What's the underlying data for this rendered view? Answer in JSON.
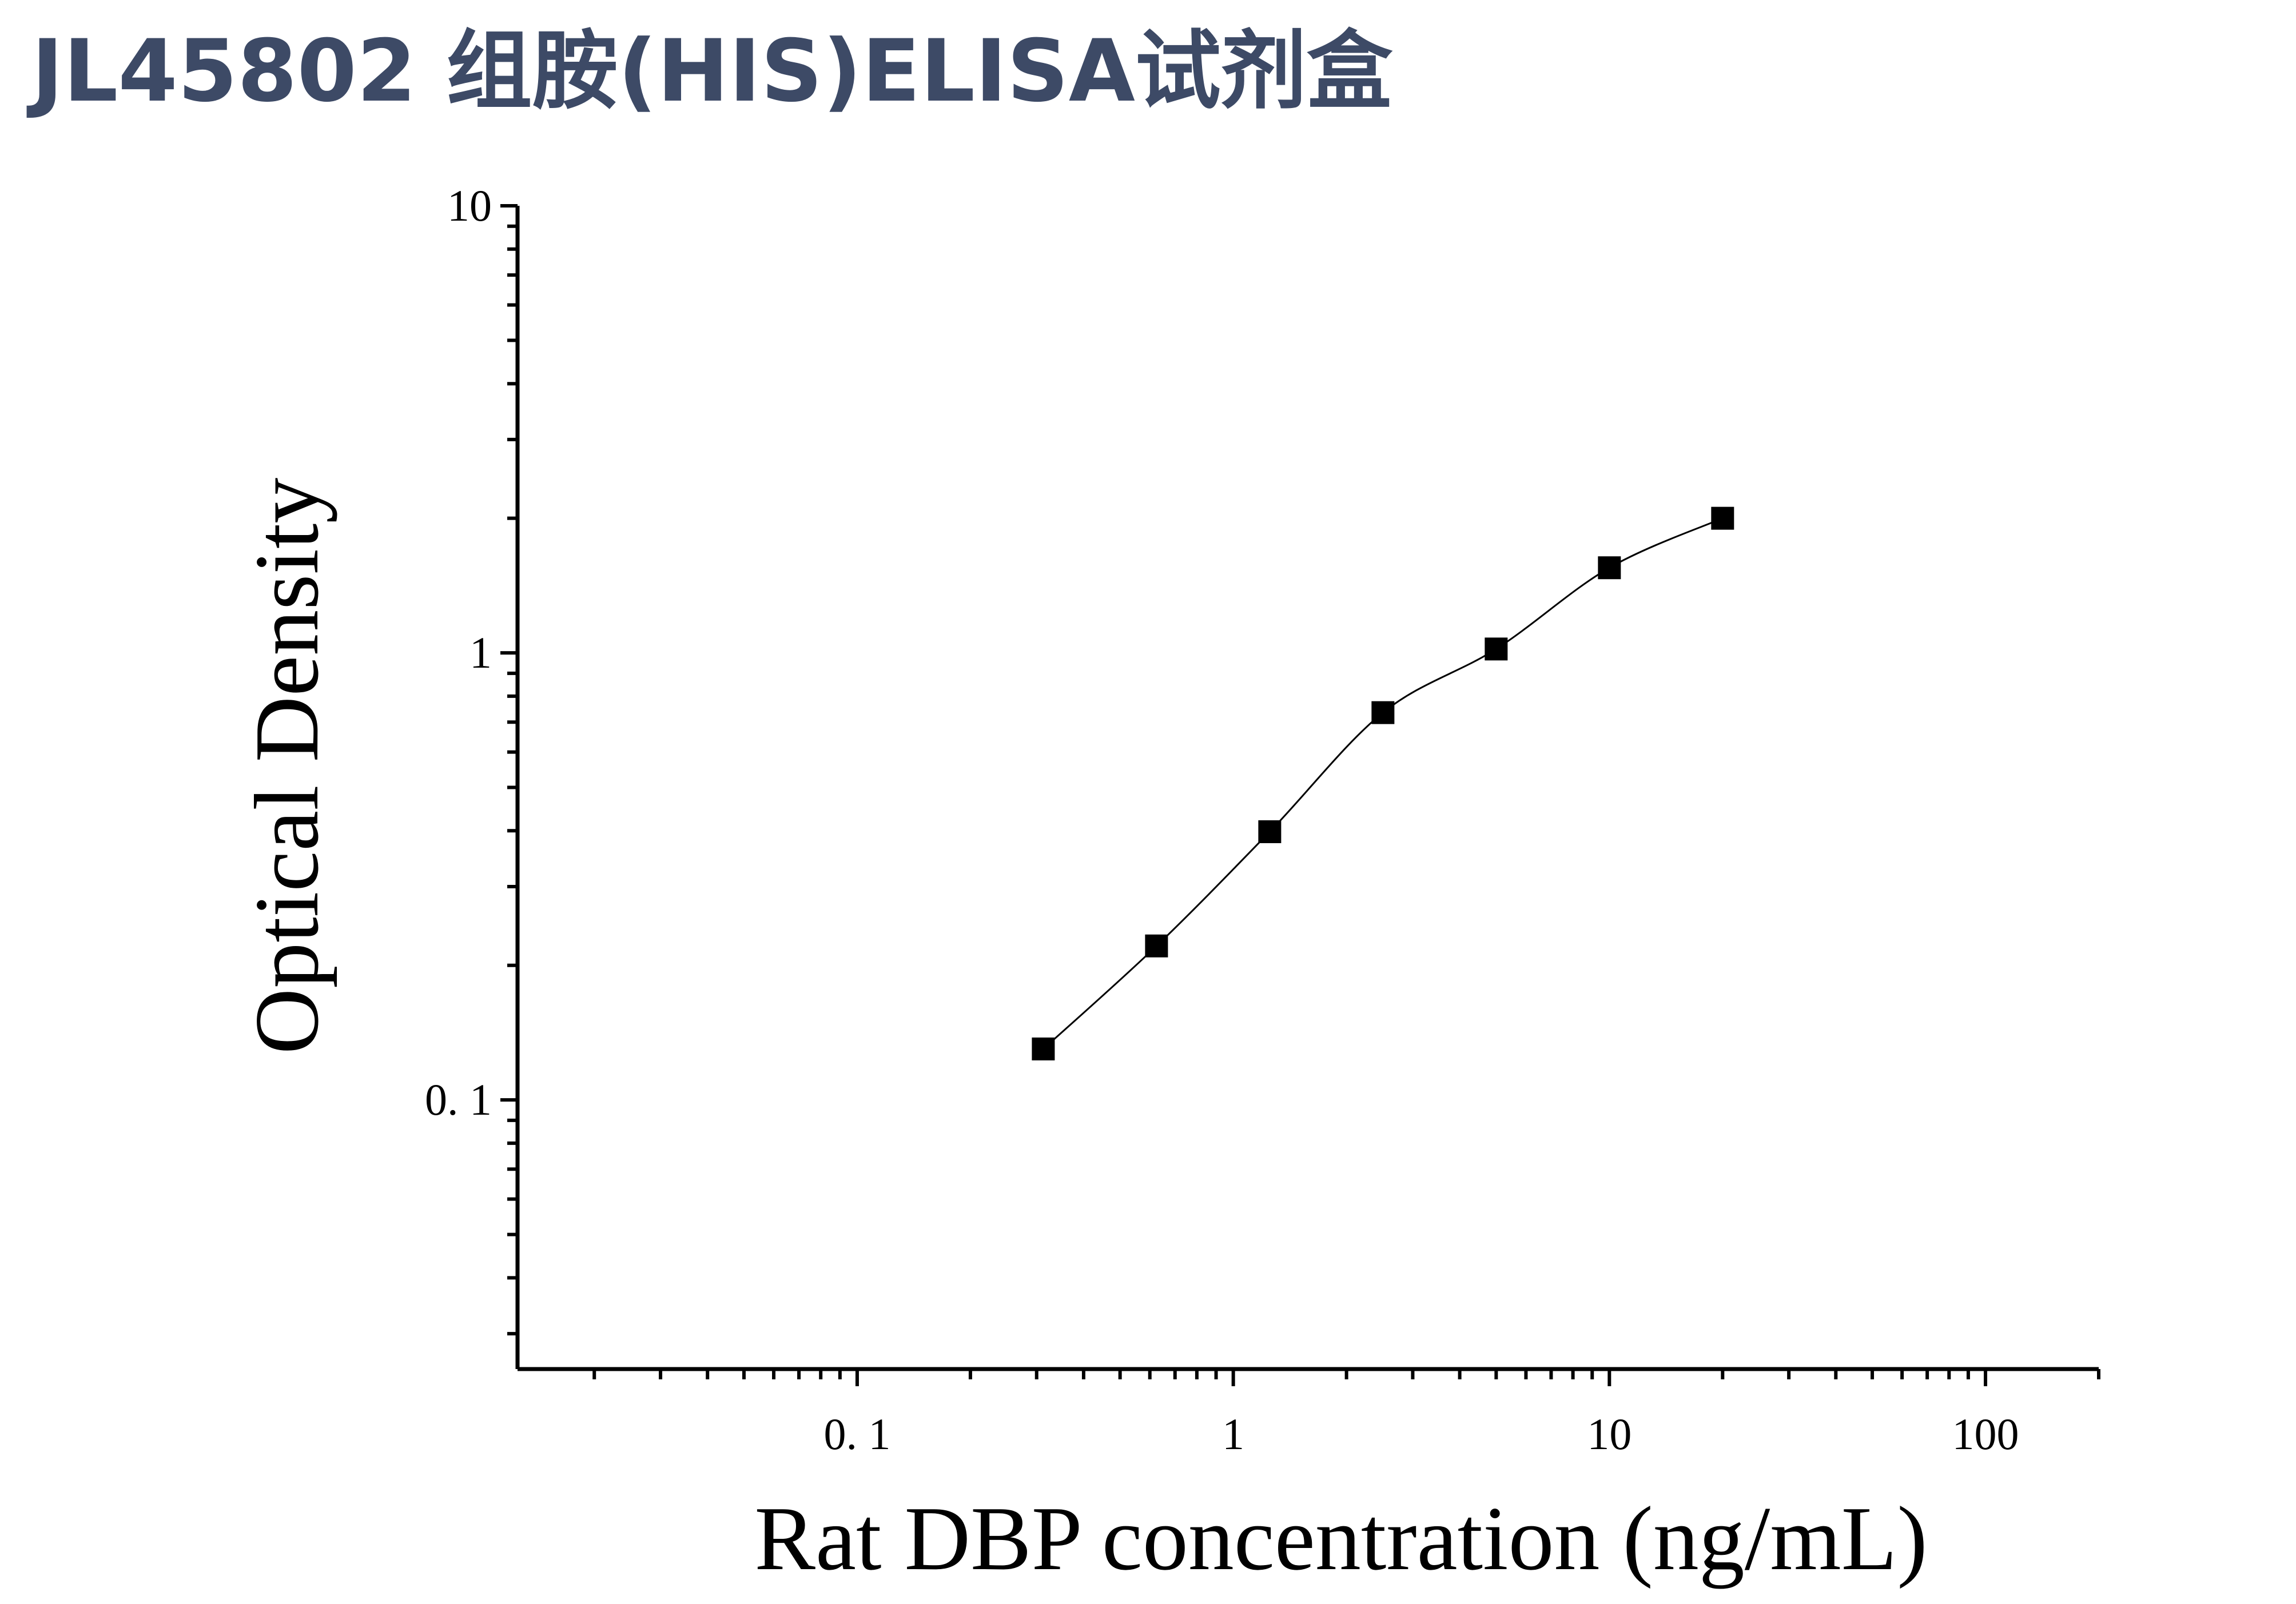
{
  "header": {
    "title": "JL45802 组胺(HIS)ELISA试剂盒"
  },
  "colors": {
    "title": "#3d4a66",
    "axis": "#000000",
    "marker": "#000000",
    "curve": "#000000"
  },
  "chart_data": {
    "type": "scatter",
    "title": "",
    "xlabel": "Rat DBP concentration (ng/mL)",
    "ylabel": "Optical Density",
    "x_scale": "log",
    "y_scale": "log",
    "xlim": [
      0.0125,
      200
    ],
    "ylim": [
      0.025,
      10
    ],
    "x_ticks": [
      {
        "value": 0.1,
        "label": "0. 1"
      },
      {
        "value": 1,
        "label": "1"
      },
      {
        "value": 10,
        "label": "10"
      },
      {
        "value": 100,
        "label": "100"
      }
    ],
    "y_ticks": [
      {
        "value": 0.1,
        "label": "0. 1"
      },
      {
        "value": 1,
        "label": "1"
      },
      {
        "value": 10,
        "label": "10"
      }
    ],
    "grid": false,
    "series": [
      {
        "marker": "square",
        "fit_line": true,
        "x": [
          0.3125,
          0.625,
          1.25,
          2.5,
          5,
          10,
          20
        ],
        "y": [
          0.13,
          0.221,
          0.398,
          0.735,
          1.02,
          1.55,
          2.0
        ]
      }
    ]
  }
}
